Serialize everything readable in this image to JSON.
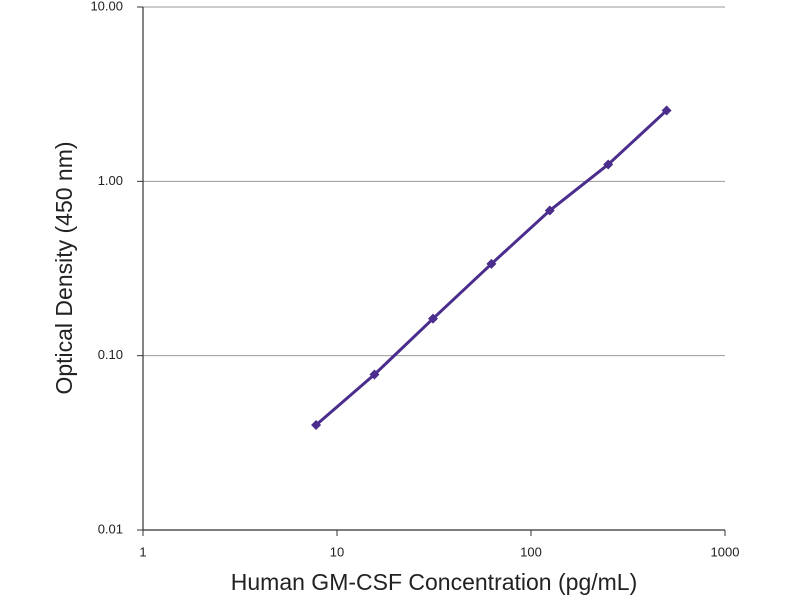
{
  "chart_data": {
    "type": "scatter",
    "x_axis_label": "Human GM-CSF Concentration (pg/mL)",
    "y_axis_label": "Optical Density (450 nm)",
    "x_scale": "log",
    "y_scale": "log",
    "xlim": [
      1,
      1000
    ],
    "ylim": [
      0.01,
      10
    ],
    "xticks": [
      1,
      10,
      100,
      1000
    ],
    "yticks": [
      {
        "value": 0.01,
        "label": "0.01"
      },
      {
        "value": 0.1,
        "label": "0.10"
      },
      {
        "value": 1,
        "label": "1.00"
      },
      {
        "value": 10,
        "label": "10.00"
      }
    ],
    "grid": true,
    "connect_points": true,
    "series": [
      {
        "color": "#4a2d8c",
        "x": [
          7.8,
          15.6,
          31.25,
          62.5,
          125,
          250,
          500
        ],
        "values": [
          0.04,
          0.078,
          0.163,
          0.336,
          0.68,
          1.25,
          2.55
        ]
      }
    ]
  }
}
